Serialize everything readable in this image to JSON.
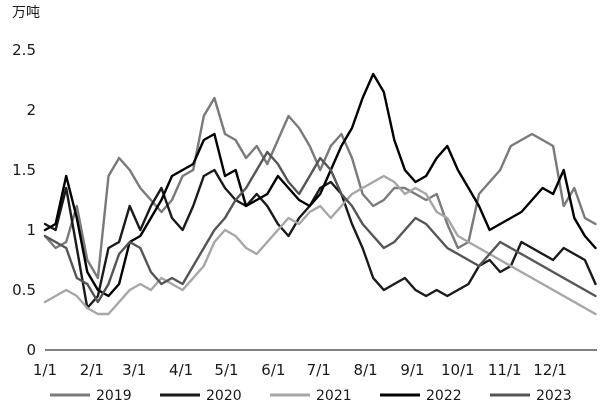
{
  "chart_data": {
    "type": "line",
    "title": "",
    "ylabel": "万吨",
    "xlabel": "",
    "ylim": [
      0,
      2.5
    ],
    "yticks": [
      0,
      0.5,
      1,
      1.5,
      2,
      2.5
    ],
    "ytick_labels": [
      "0",
      "0.5",
      "1",
      "1.5",
      "2",
      "2.5"
    ],
    "xlim": [
      1,
      366
    ],
    "xticks": [
      1,
      32,
      60,
      91,
      121,
      152,
      182,
      213,
      244,
      274,
      305,
      335
    ],
    "xtick_labels": [
      "1/1",
      "2/1",
      "3/1",
      "4/1",
      "5/1",
      "6/1",
      "7/1",
      "8/1",
      "9/1",
      "10/1",
      "11/1",
      "12/1"
    ],
    "grid": false,
    "legend_position": "bottom",
    "series": [
      {
        "name": "2019",
        "color": "#7a7a7a",
        "x": [
          1,
          8,
          15,
          22,
          29,
          36,
          43,
          50,
          57,
          64,
          71,
          78,
          85,
          92,
          99,
          106,
          113,
          120,
          127,
          134,
          141,
          148,
          155,
          162,
          169,
          176,
          183,
          190,
          197,
          204,
          211,
          218,
          225,
          232,
          239,
          246,
          253,
          260,
          267,
          274,
          281,
          288,
          295,
          302,
          309,
          316,
          323,
          330,
          337,
          344,
          351,
          358,
          365
        ],
        "y": [
          0.95,
          0.85,
          0.9,
          1.2,
          0.75,
          0.6,
          1.45,
          1.6,
          1.5,
          1.35,
          1.25,
          1.15,
          1.25,
          1.45,
          1.5,
          1.95,
          2.1,
          1.8,
          1.75,
          1.6,
          1.7,
          1.55,
          1.75,
          1.95,
          1.85,
          1.7,
          1.5,
          1.7,
          1.8,
          1.6,
          1.3,
          1.2,
          1.25,
          1.35,
          1.35,
          1.3,
          1.25,
          1.3,
          1.05,
          0.85,
          0.9,
          1.3,
          1.4,
          1.5,
          1.7,
          1.75,
          1.8,
          1.75,
          1.7,
          1.2,
          1.35,
          1.1,
          1.05
        ]
      },
      {
        "name": "2020",
        "color": "#1a1a1a",
        "x": [
          1,
          8,
          15,
          22,
          29,
          36,
          43,
          50,
          57,
          64,
          71,
          78,
          85,
          92,
          99,
          106,
          113,
          120,
          127,
          134,
          141,
          148,
          155,
          162,
          169,
          176,
          183,
          190,
          197,
          204,
          211,
          218,
          225,
          232,
          239,
          246,
          253,
          260,
          267,
          274,
          281,
          288,
          295,
          302,
          309,
          316,
          323,
          330,
          337,
          344,
          351,
          358,
          365
        ],
        "y": [
          1.05,
          1.0,
          1.35,
          0.85,
          0.35,
          0.45,
          0.85,
          0.9,
          1.2,
          1.0,
          1.2,
          1.35,
          1.1,
          1.0,
          1.2,
          1.45,
          1.5,
          1.35,
          1.25,
          1.2,
          1.3,
          1.2,
          1.05,
          0.95,
          1.1,
          1.2,
          1.35,
          1.4,
          1.3,
          1.05,
          0.85,
          0.6,
          0.5,
          0.55,
          0.6,
          0.5,
          0.45,
          0.5,
          0.45,
          0.5,
          0.55,
          0.7,
          0.75,
          0.65,
          0.7,
          0.9,
          0.85,
          0.8,
          0.75,
          0.85,
          0.8,
          0.75,
          0.55
        ]
      },
      {
        "name": "2021",
        "color": "#a6a6a6",
        "x": [
          1,
          8,
          15,
          22,
          29,
          36,
          43,
          50,
          57,
          64,
          71,
          78,
          85,
          92,
          99,
          106,
          113,
          120,
          127,
          134,
          141,
          148,
          155,
          162,
          169,
          176,
          183,
          190,
          197,
          204,
          211,
          218,
          225,
          232,
          239,
          246,
          253,
          260,
          267,
          274,
          281,
          288,
          295,
          302,
          309,
          316,
          323,
          330,
          337,
          344,
          351,
          358,
          365
        ],
        "y": [
          0.4,
          0.45,
          0.5,
          0.45,
          0.35,
          0.3,
          0.3,
          0.4,
          0.5,
          0.55,
          0.5,
          0.6,
          0.55,
          0.5,
          0.6,
          0.7,
          0.9,
          1.0,
          0.95,
          0.85,
          0.8,
          0.9,
          1.0,
          1.1,
          1.05,
          1.15,
          1.2,
          1.1,
          1.2,
          1.3,
          1.35,
          1.4,
          1.45,
          1.4,
          1.3,
          1.35,
          1.3,
          1.15,
          1.1,
          0.95,
          0.9,
          0.85,
          0.8,
          0.75,
          0.7,
          0.65,
          0.6,
          0.55,
          0.5,
          0.45,
          0.4,
          0.35,
          0.3
        ]
      },
      {
        "name": "2022",
        "color": "#000000",
        "x": [
          1,
          8,
          15,
          22,
          29,
          36,
          43,
          50,
          57,
          64,
          71,
          78,
          85,
          92,
          99,
          106,
          113,
          120,
          127,
          134,
          141,
          148,
          155,
          162,
          169,
          176,
          183,
          190,
          197,
          204,
          211,
          218,
          225,
          232,
          239,
          246,
          253,
          260,
          267,
          274,
          281,
          288,
          295,
          302,
          309,
          316,
          323,
          330,
          337,
          344,
          351,
          358,
          365
        ],
        "y": [
          1.0,
          1.05,
          1.45,
          1.1,
          0.65,
          0.5,
          0.45,
          0.55,
          0.9,
          0.95,
          1.1,
          1.25,
          1.45,
          1.5,
          1.55,
          1.75,
          1.8,
          1.45,
          1.5,
          1.2,
          1.25,
          1.3,
          1.45,
          1.35,
          1.25,
          1.2,
          1.3,
          1.5,
          1.7,
          1.85,
          2.1,
          2.3,
          2.15,
          1.75,
          1.5,
          1.4,
          1.45,
          1.6,
          1.7,
          1.5,
          1.35,
          1.2,
          1.0,
          1.05,
          1.1,
          1.15,
          1.25,
          1.35,
          1.3,
          1.5,
          1.1,
          0.95,
          0.85
        ]
      },
      {
        "name": "2023",
        "color": "#555555",
        "x": [
          1,
          8,
          15,
          22,
          29,
          36,
          43,
          50,
          57,
          64,
          71,
          78,
          85,
          92,
          99,
          106,
          113,
          120,
          127,
          134,
          141,
          148,
          155,
          162,
          169,
          176,
          183,
          190,
          197,
          204,
          211,
          218,
          225,
          232,
          239,
          246,
          253,
          260,
          267,
          274,
          281,
          288,
          295,
          302,
          309,
          316,
          323,
          330,
          337,
          344,
          351,
          358,
          365
        ],
        "y": [
          0.95,
          0.9,
          0.85,
          0.6,
          0.55,
          0.4,
          0.55,
          0.8,
          0.9,
          0.85,
          0.65,
          0.55,
          0.6,
          0.55,
          0.7,
          0.85,
          1.0,
          1.1,
          1.25,
          1.35,
          1.5,
          1.65,
          1.55,
          1.4,
          1.3,
          1.45,
          1.6,
          1.5,
          1.3,
          1.2,
          1.05,
          0.95,
          0.85,
          0.9,
          1.0,
          1.1,
          1.05,
          0.95,
          0.85,
          0.8,
          0.75,
          0.7,
          0.8,
          0.9,
          0.85,
          0.8,
          0.75,
          0.7,
          0.65,
          0.6,
          0.55,
          0.5,
          0.45
        ]
      }
    ]
  }
}
